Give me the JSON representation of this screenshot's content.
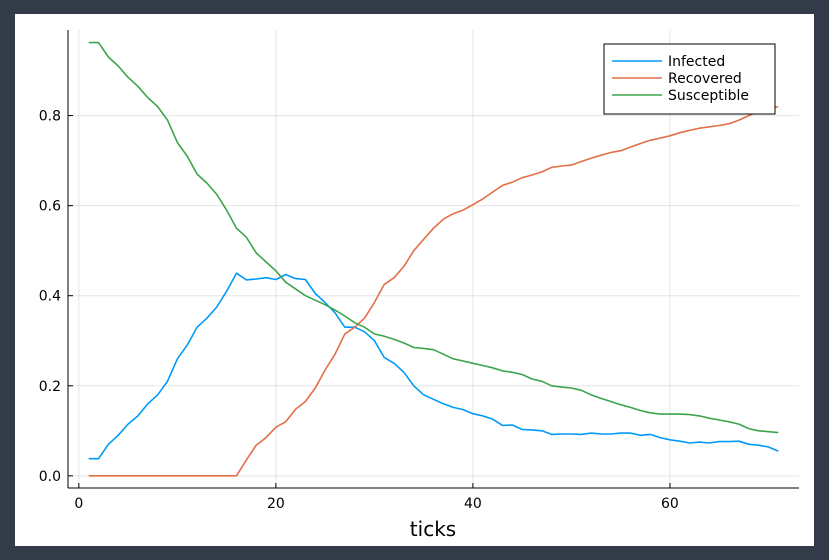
{
  "chart_data": {
    "type": "line",
    "title": "",
    "xlabel": "ticks",
    "ylabel": "",
    "xlim": [
      -1.1,
      73.1
    ],
    "ylim": [
      -0.027,
      0.99
    ],
    "xticks": [
      0,
      20,
      40,
      60
    ],
    "yticks": [
      0.0,
      0.2,
      0.4,
      0.6,
      0.8
    ],
    "xtick_labels": [
      "0",
      "20",
      "40",
      "60"
    ],
    "ytick_labels": [
      "0.0",
      "0.2",
      "0.4",
      "0.6",
      "0.8"
    ],
    "grid": true,
    "legend_position": "top-right",
    "series": [
      {
        "name": "Infected",
        "color": "#009af9",
        "x": [
          1,
          2,
          3,
          4,
          5,
          6,
          7,
          8,
          9,
          10,
          11,
          12,
          13,
          14,
          15,
          16,
          17,
          18,
          19,
          20,
          21,
          22,
          23,
          24,
          25,
          26,
          27,
          28,
          29,
          30,
          31,
          32,
          33,
          34,
          35,
          36,
          37,
          38,
          39,
          40,
          41,
          42,
          43,
          44,
          45,
          46,
          47,
          48,
          49,
          50,
          51,
          52,
          53,
          54,
          55,
          56,
          57,
          58,
          59,
          60,
          61,
          62,
          63,
          64,
          65,
          66,
          67,
          68,
          69,
          70,
          71
        ],
        "values": [
          0.038,
          0.038,
          0.07,
          0.09,
          0.115,
          0.133,
          0.16,
          0.18,
          0.21,
          0.26,
          0.29,
          0.33,
          0.35,
          0.375,
          0.41,
          0.45,
          0.435,
          0.437,
          0.44,
          0.436,
          0.447,
          0.438,
          0.436,
          0.405,
          0.385,
          0.362,
          0.33,
          0.33,
          0.32,
          0.3,
          0.263,
          0.25,
          0.23,
          0.2,
          0.18,
          0.17,
          0.16,
          0.152,
          0.147,
          0.138,
          0.133,
          0.126,
          0.112,
          0.113,
          0.103,
          0.102,
          0.1,
          0.092,
          0.093,
          0.093,
          0.092,
          0.095,
          0.093,
          0.093,
          0.095,
          0.095,
          0.09,
          0.092,
          0.085,
          0.08,
          0.077,
          0.073,
          0.075,
          0.073,
          0.076,
          0.076,
          0.077,
          0.07,
          0.068,
          0.064,
          0.055
        ]
      },
      {
        "name": "Recovered",
        "color": "#e26f46",
        "x": [
          1,
          2,
          3,
          4,
          5,
          6,
          7,
          8,
          9,
          10,
          11,
          12,
          13,
          14,
          15,
          16,
          17,
          18,
          19,
          20,
          21,
          22,
          23,
          24,
          25,
          26,
          27,
          28,
          29,
          30,
          31,
          32,
          33,
          34,
          35,
          36,
          37,
          38,
          39,
          40,
          41,
          42,
          43,
          44,
          45,
          46,
          47,
          48,
          49,
          50,
          51,
          52,
          53,
          54,
          55,
          56,
          57,
          58,
          59,
          60,
          61,
          62,
          63,
          64,
          65,
          66,
          67,
          68,
          69,
          70,
          71
        ],
        "values": [
          0,
          0,
          0,
          0,
          0,
          0,
          0,
          0,
          0,
          0,
          0,
          0,
          0,
          0,
          0,
          0,
          0.035,
          0.068,
          0.085,
          0.108,
          0.12,
          0.148,
          0.165,
          0.195,
          0.235,
          0.27,
          0.315,
          0.33,
          0.35,
          0.385,
          0.425,
          0.44,
          0.465,
          0.5,
          0.525,
          0.55,
          0.57,
          0.582,
          0.59,
          0.602,
          0.615,
          0.63,
          0.645,
          0.652,
          0.662,
          0.668,
          0.675,
          0.685,
          0.688,
          0.69,
          0.698,
          0.705,
          0.712,
          0.718,
          0.722,
          0.73,
          0.738,
          0.745,
          0.75,
          0.755,
          0.762,
          0.767,
          0.772,
          0.775,
          0.778,
          0.782,
          0.79,
          0.8,
          0.81,
          0.815,
          0.82
        ]
      },
      {
        "name": "Susceptible",
        "color": "#3da44d",
        "x": [
          1,
          2,
          3,
          4,
          5,
          6,
          7,
          8,
          9,
          10,
          11,
          12,
          13,
          14,
          15,
          16,
          17,
          18,
          19,
          20,
          21,
          22,
          23,
          24,
          25,
          26,
          27,
          28,
          29,
          30,
          31,
          32,
          33,
          34,
          35,
          36,
          37,
          38,
          39,
          40,
          41,
          42,
          43,
          44,
          45,
          46,
          47,
          48,
          49,
          50,
          51,
          52,
          53,
          54,
          55,
          56,
          57,
          58,
          59,
          60,
          61,
          62,
          63,
          64,
          65,
          66,
          67,
          68,
          69,
          70,
          71
        ],
        "values": [
          0.962,
          0.962,
          0.93,
          0.91,
          0.885,
          0.865,
          0.84,
          0.82,
          0.79,
          0.74,
          0.71,
          0.67,
          0.65,
          0.625,
          0.59,
          0.55,
          0.53,
          0.495,
          0.475,
          0.455,
          0.43,
          0.415,
          0.4,
          0.39,
          0.38,
          0.368,
          0.355,
          0.34,
          0.33,
          0.315,
          0.31,
          0.303,
          0.295,
          0.285,
          0.283,
          0.28,
          0.27,
          0.26,
          0.255,
          0.25,
          0.245,
          0.24,
          0.233,
          0.23,
          0.225,
          0.215,
          0.21,
          0.2,
          0.197,
          0.195,
          0.19,
          0.18,
          0.172,
          0.165,
          0.158,
          0.152,
          0.145,
          0.14,
          0.137,
          0.137,
          0.137,
          0.136,
          0.133,
          0.128,
          0.124,
          0.12,
          0.115,
          0.105,
          0.1,
          0.098,
          0.096
        ]
      }
    ]
  }
}
